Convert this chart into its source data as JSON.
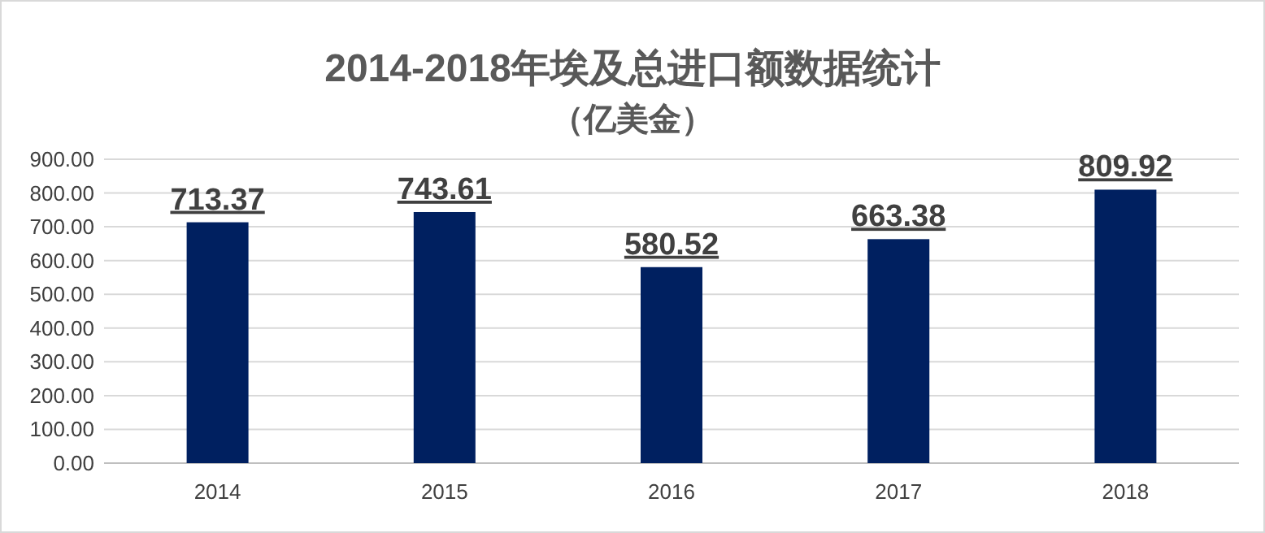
{
  "chart_data": {
    "type": "bar",
    "title": "2014-2018年埃及总进口额数据统计",
    "subtitle": "（亿美金）",
    "categories": [
      "2014",
      "2015",
      "2016",
      "2017",
      "2018"
    ],
    "values": [
      713.37,
      743.61,
      580.52,
      663.38,
      809.92
    ],
    "color": "#002060",
    "ylim": [
      0,
      900
    ],
    "yticks": [
      {
        "value": 0,
        "label": "0.00"
      },
      {
        "value": 100,
        "label": "100.00"
      },
      {
        "value": 200,
        "label": "200.00"
      },
      {
        "value": 300,
        "label": "300.00"
      },
      {
        "value": 400,
        "label": "400.00"
      },
      {
        "value": 500,
        "label": "500.00"
      },
      {
        "value": 600,
        "label": "600.00"
      },
      {
        "value": 700,
        "label": "700.00"
      },
      {
        "value": 800,
        "label": "800.00"
      },
      {
        "value": 900,
        "label": "900.00"
      }
    ],
    "grid": "y",
    "data_labels": true
  }
}
